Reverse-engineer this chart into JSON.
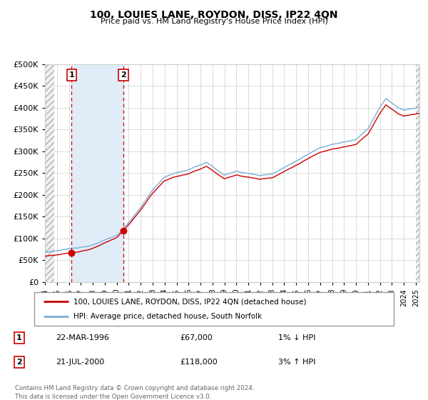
{
  "title": "100, LOUIES LANE, ROYDON, DISS, IP22 4QN",
  "subtitle": "Price paid vs. HM Land Registry's House Price Index (HPI)",
  "legend_line1": "100, LOUIES LANE, ROYDON, DISS, IP22 4QN (detached house)",
  "legend_line2": "HPI: Average price, detached house, South Norfolk",
  "table_rows": [
    [
      "1",
      "22-MAR-1996",
      "£67,000",
      "1% ↓ HPI"
    ],
    [
      "2",
      "21-JUL-2000",
      "£118,000",
      "3% ↑ HPI"
    ]
  ],
  "footer": "Contains HM Land Registry data © Crown copyright and database right 2024.\nThis data is licensed under the Open Government Licence v3.0.",
  "hpi_color": "#7aaed4",
  "sale_line_color": "#cc0000",
  "sale_dot_color": "#cc0000",
  "vline_color": "#cc0000",
  "highlight_color": "#e0ecf8",
  "ylim": [
    0,
    500000
  ],
  "yticks": [
    0,
    50000,
    100000,
    150000,
    200000,
    250000,
    300000,
    350000,
    400000,
    450000,
    500000
  ],
  "xlim_start": 1994.0,
  "xlim_end": 2025.3,
  "sale1_year": 1996.22,
  "sale1_price": 67000,
  "sale2_year": 2000.55,
  "sale2_price": 118000,
  "hatch_left_end": 1994.75,
  "hatch_right_start": 2025.0
}
